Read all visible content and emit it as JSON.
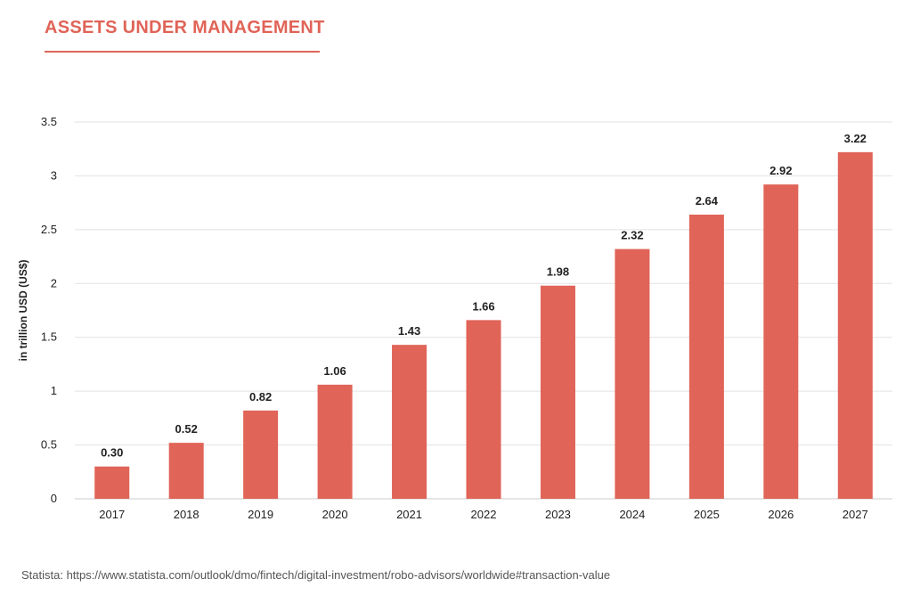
{
  "chart_data": {
    "type": "bar",
    "title": "ASSETS UNDER MANAGEMENT",
    "xlabel": "",
    "ylabel": "in trillion USD (US$)",
    "categories": [
      "2017",
      "2018",
      "2019",
      "2020",
      "2021",
      "2022",
      "2023",
      "2024",
      "2025",
      "2026",
      "2027"
    ],
    "values": [
      0.3,
      0.52,
      0.82,
      1.06,
      1.43,
      1.66,
      1.98,
      2.32,
      2.64,
      2.92,
      3.22
    ],
    "value_labels": [
      "0.30",
      "0.52",
      "0.82",
      "1.06",
      "1.43",
      "1.66",
      "1.98",
      "2.32",
      "2.64",
      "2.92",
      "3.22"
    ],
    "ylim": [
      0,
      3.5
    ],
    "yticks": [
      0,
      0.5,
      1,
      1.5,
      2,
      2.5,
      3,
      3.5
    ],
    "ytick_labels": [
      "0",
      "0.5",
      "1",
      "1.5",
      "2",
      "2.5",
      "3",
      "3.5"
    ],
    "grid": true,
    "legend": "none",
    "bar_color": "#e06457",
    "grid_color": "#e2e2e2",
    "source": "Statista: https://www.statista.com/outlook/dmo/fintech/digital-investment/robo-advisors/worldwide#transaction-value"
  }
}
